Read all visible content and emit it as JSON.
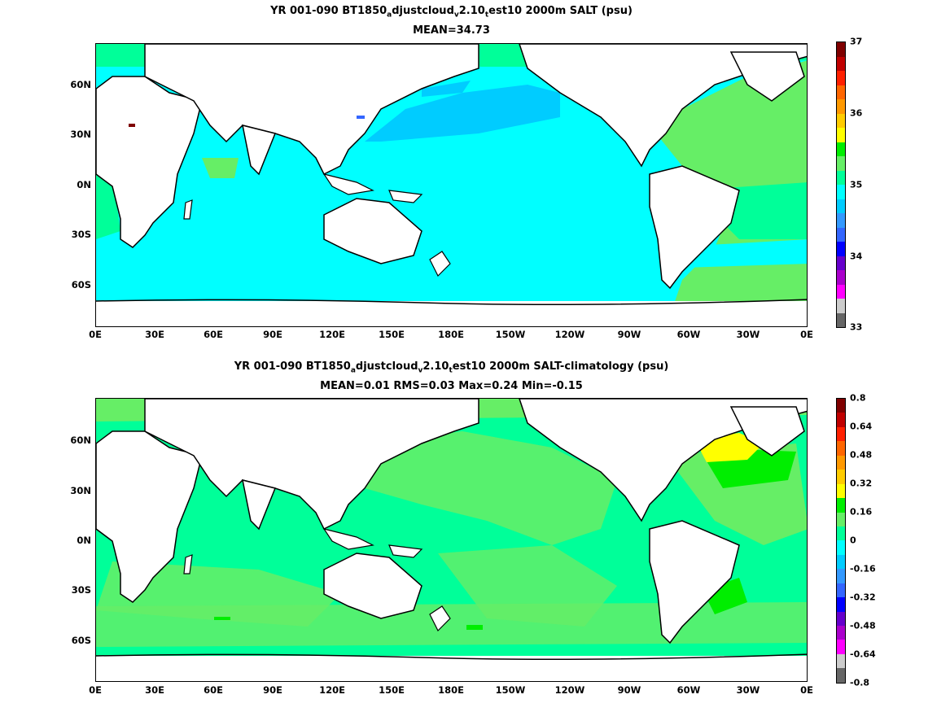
{
  "panel1": {
    "title_line1_a": "YR 001-090 BT1850",
    "title_sub1": "a",
    "title_line1_b": "djustcloud",
    "title_sub2": "v",
    "title_line1_c": "2.10",
    "title_sub3": "t",
    "title_line1_d": "est10 2000m SALT (psu)",
    "title_line2": "MEAN=34.73",
    "colorbar_labels": [
      "37",
      "36",
      "35",
      "34",
      "33"
    ],
    "colorbar_colors": [
      "#7f0000",
      "#c00000",
      "#ff2000",
      "#ff6600",
      "#ff9900",
      "#ffcc00",
      "#ffff00",
      "#00ee00",
      "#66ee66",
      "#00ff99",
      "#00ffff",
      "#00ccff",
      "#3399ff",
      "#3366ff",
      "#0000ff",
      "#6600cc",
      "#aa00cc",
      "#ff00ff",
      "#cccccc",
      "#666666"
    ]
  },
  "panel2": {
    "title_line1_a": "YR 001-090 BT1850",
    "title_sub1": "a",
    "title_line1_b": "djustcloud",
    "title_sub2": "v",
    "title_line1_c": "2.10",
    "title_sub3": "t",
    "title_line1_d": "est10 2000m SALT-climatology (psu)",
    "title_line2": "MEAN=0.01   RMS=0.03   Max=0.24   Min=-0.15",
    "colorbar_labels": [
      "0.8",
      "0.64",
      "0.48",
      "0.32",
      "0.16",
      "0",
      "-0.16",
      "-0.32",
      "-0.48",
      "-0.64",
      "-0.8"
    ],
    "colorbar_colors": [
      "#7f0000",
      "#c00000",
      "#ff2000",
      "#ff6600",
      "#ff9900",
      "#ffcc00",
      "#ffff00",
      "#00ee00",
      "#66ee66",
      "#00ff99",
      "#00ffff",
      "#00ccff",
      "#3399ff",
      "#3366ff",
      "#0000ff",
      "#6600cc",
      "#aa00cc",
      "#ff00ff",
      "#cccccc",
      "#666666"
    ]
  },
  "axes": {
    "x_ticks": [
      "0E",
      "30E",
      "60E",
      "90E",
      "120E",
      "150E",
      "180E",
      "150W",
      "120W",
      "90W",
      "60W",
      "30W",
      "0E"
    ],
    "y_ticks": [
      "60N",
      "30N",
      "0N",
      "30S",
      "60S"
    ]
  },
  "colors": {
    "land": "#ffffff",
    "coast": "#000000",
    "salt_pacific": "#00ffff",
    "salt_npac_fresh": "#00ccff",
    "salt_atlantic": "#66ee66",
    "salt_equatorial_atl": "#00ff99",
    "anom_base": "#00ff99",
    "anom_pos": "#66ee66",
    "anom_high": "#00ee00",
    "anom_max": "#ffff00"
  }
}
